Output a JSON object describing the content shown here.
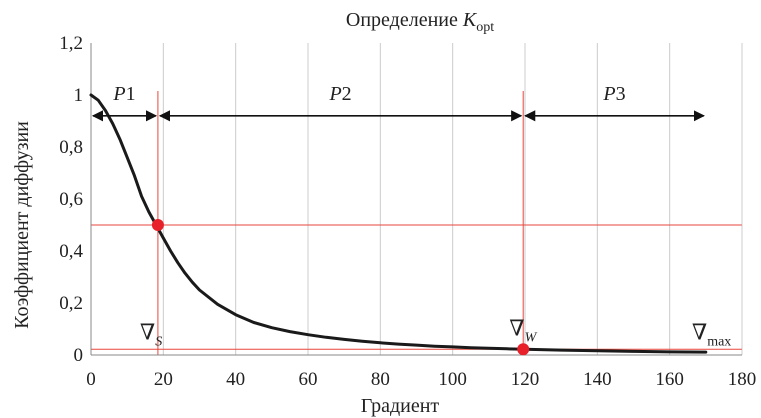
{
  "chart_data": {
    "type": "line",
    "title": {
      "prefix": "Определение ",
      "symbol": "K",
      "subscript": "opt"
    },
    "xlabel": "Градиент",
    "ylabel": "Коэффициент диффузии",
    "xlim": [
      0,
      180
    ],
    "ylim": [
      0,
      1.2
    ],
    "x_ticks": [
      "0",
      "20",
      "40",
      "60",
      "80",
      "100",
      "120",
      "140",
      "160",
      "180"
    ],
    "y_ticks": [
      "0",
      "0,2",
      "0,4",
      "0,6",
      "0,8",
      "1",
      "1,2"
    ],
    "grid": "vertical",
    "series": [
      {
        "x": [
          0,
          2,
          4,
          6,
          8,
          10,
          12,
          14,
          16,
          18,
          20,
          22,
          24,
          26,
          28,
          30,
          35,
          40,
          45,
          50,
          55,
          60,
          65,
          70,
          75,
          80,
          85,
          90,
          95,
          100,
          105,
          110,
          115,
          120,
          130,
          140,
          150,
          160,
          170
        ],
        "y": [
          1.0,
          0.98,
          0.94,
          0.89,
          0.83,
          0.76,
          0.69,
          0.61,
          0.55,
          0.5,
          0.45,
          0.4,
          0.355,
          0.315,
          0.28,
          0.25,
          0.195,
          0.155,
          0.125,
          0.105,
          0.09,
          0.078,
          0.068,
          0.06,
          0.053,
          0.047,
          0.042,
          0.038,
          0.034,
          0.031,
          0.028,
          0.026,
          0.024,
          0.022,
          0.019,
          0.016,
          0.014,
          0.012,
          0.011
        ]
      }
    ],
    "vertical_lines": [
      18.5,
      119.5
    ],
    "horizontal_lines": [
      0.5,
      0.022
    ],
    "points": [
      {
        "x": 18.5,
        "y": 0.5
      },
      {
        "x": 119.5,
        "y": 0.022
      }
    ],
    "regions": [
      {
        "label": "P",
        "index": "1",
        "from": 0,
        "to": 18.5
      },
      {
        "label": "P",
        "index": "2",
        "from": 18.5,
        "to": 119.5
      },
      {
        "label": "P",
        "index": "3",
        "from": 119.5,
        "to": 170
      }
    ],
    "markers": [
      {
        "symbol": "∇",
        "subscript": "S",
        "x": 18.5
      },
      {
        "symbol": "∇",
        "subscript": "W",
        "x": 119.5
      },
      {
        "symbol": "∇",
        "subscript": "max",
        "x": 170
      }
    ],
    "colors": {
      "curve": "#1a1a1a",
      "guides": "#e8463c",
      "points": "#e8202a",
      "grid": "#cccccc",
      "arrows": "#111111"
    }
  }
}
